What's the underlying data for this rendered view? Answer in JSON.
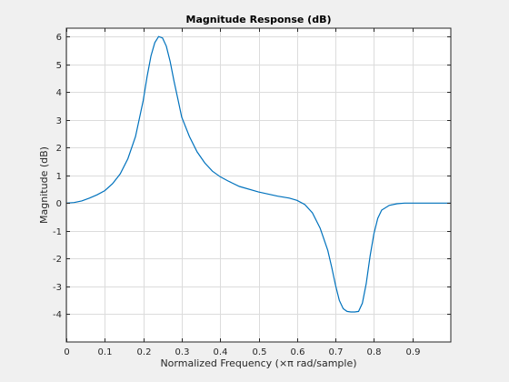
{
  "chart_data": {
    "type": "line",
    "title": "Magnitude Response (dB)",
    "xlabel": "Normalized Frequency (×π rad/sample)",
    "ylabel": "Magnitude (dB)",
    "xlim": [
      0,
      1
    ],
    "ylim": [
      -5,
      6.3
    ],
    "xticks": [
      0,
      0.1,
      0.2,
      0.3,
      0.4,
      0.5,
      0.6,
      0.7,
      0.8,
      0.9
    ],
    "xtick_labels": [
      "0",
      "0.1",
      "0.2",
      "0.3",
      "0.4",
      "0.5",
      "0.6",
      "0.7",
      "0.8",
      "0.9"
    ],
    "yticks": [
      6,
      5,
      4,
      3,
      2,
      1,
      0,
      -1,
      -2,
      -3,
      -4
    ],
    "ytick_labels": [
      "6",
      "5",
      "4",
      "3",
      "2",
      "1",
      "0",
      "-1",
      "-2",
      "-3",
      "-4"
    ],
    "grid": true,
    "series_color": "#0072bd",
    "series": [
      {
        "x": [
          0,
          0.02,
          0.04,
          0.06,
          0.08,
          0.1,
          0.12,
          0.14,
          0.16,
          0.18,
          0.2,
          0.21,
          0.22,
          0.23,
          0.24,
          0.25,
          0.26,
          0.27,
          0.28,
          0.29,
          0.3,
          0.32,
          0.34,
          0.36,
          0.38,
          0.4,
          0.42,
          0.45,
          0.5,
          0.55,
          0.58,
          0.6,
          0.62,
          0.64,
          0.66,
          0.68,
          0.69,
          0.7,
          0.71,
          0.72,
          0.73,
          0.74,
          0.75,
          0.76,
          0.77,
          0.78,
          0.79,
          0.8,
          0.81,
          0.82,
          0.84,
          0.86,
          0.88,
          0.9,
          0.95,
          1.0
        ],
        "y": [
          0.0,
          0.02,
          0.08,
          0.18,
          0.3,
          0.45,
          0.7,
          1.05,
          1.6,
          2.4,
          3.7,
          4.55,
          5.3,
          5.78,
          6.0,
          5.95,
          5.65,
          5.1,
          4.4,
          3.75,
          3.1,
          2.4,
          1.85,
          1.45,
          1.15,
          0.95,
          0.8,
          0.6,
          0.4,
          0.25,
          0.18,
          0.1,
          -0.05,
          -0.35,
          -0.9,
          -1.7,
          -2.3,
          -2.95,
          -3.5,
          -3.8,
          -3.9,
          -3.92,
          -3.92,
          -3.9,
          -3.6,
          -2.9,
          -1.9,
          -1.1,
          -0.55,
          -0.25,
          -0.08,
          -0.02,
          0.0,
          0.0,
          0.0,
          0.0
        ]
      }
    ]
  }
}
